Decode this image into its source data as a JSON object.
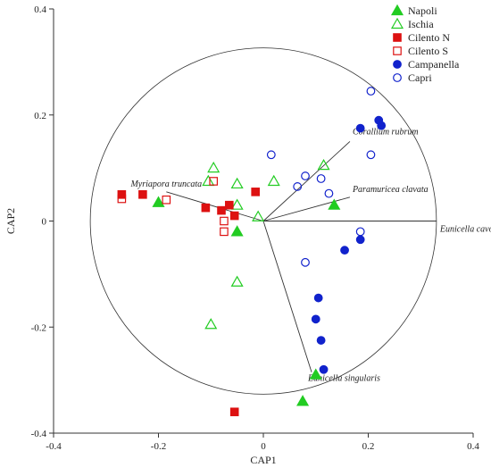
{
  "chart_data": {
    "type": "scatter",
    "xlabel": "CAP1",
    "ylabel": "CAP2",
    "xlim": [
      -0.4,
      0.4
    ],
    "ylim": [
      -0.4,
      0.4
    ],
    "x_ticks": [
      -0.4,
      -0.2,
      0,
      0.2,
      0.4
    ],
    "y_ticks": [
      -0.4,
      -0.2,
      0,
      0.2,
      0.4
    ],
    "x_tick_labels": [
      "-0.4",
      "-0.2",
      "0",
      "0.2",
      "0.4"
    ],
    "y_tick_labels": [
      "-0.4",
      "-0.2",
      "0",
      "0.2",
      "0.4"
    ],
    "grid": false,
    "circle_radius": 0.33,
    "legend_position": "top-right",
    "series": [
      {
        "name": "Napoli",
        "marker": "triangle",
        "filled": true,
        "color": "#22cc22",
        "points": [
          [
            -0.2,
            0.035
          ],
          [
            -0.05,
            -0.02
          ],
          [
            0.135,
            0.03
          ],
          [
            0.1,
            -0.29
          ],
          [
            0.075,
            -0.34
          ]
        ]
      },
      {
        "name": "Ischia",
        "marker": "triangle",
        "filled": false,
        "color": "#22cc22",
        "points": [
          [
            -0.095,
            0.1
          ],
          [
            -0.105,
            0.075
          ],
          [
            -0.05,
            0.07
          ],
          [
            -0.05,
            0.03
          ],
          [
            -0.01,
            0.008
          ],
          [
            0.02,
            0.075
          ],
          [
            0.115,
            0.105
          ],
          [
            -0.05,
            -0.115
          ],
          [
            -0.1,
            -0.195
          ]
        ]
      },
      {
        "name": "Cilento N",
        "marker": "square",
        "filled": true,
        "color": "#dd1111",
        "points": [
          [
            -0.27,
            0.05
          ],
          [
            -0.23,
            0.05
          ],
          [
            -0.11,
            0.025
          ],
          [
            -0.08,
            0.02
          ],
          [
            -0.065,
            0.03
          ],
          [
            -0.055,
            0.01
          ],
          [
            -0.015,
            0.055
          ],
          [
            -0.055,
            -0.36
          ]
        ]
      },
      {
        "name": "Cilento S",
        "marker": "square",
        "filled": false,
        "color": "#dd1111",
        "points": [
          [
            -0.27,
            0.042
          ],
          [
            -0.185,
            0.04
          ],
          [
            -0.095,
            0.075
          ],
          [
            -0.075,
            0.0
          ],
          [
            -0.075,
            -0.02
          ]
        ]
      },
      {
        "name": "Campanella",
        "marker": "circle",
        "filled": true,
        "color": "#1122cc",
        "points": [
          [
            0.185,
            0.175
          ],
          [
            0.22,
            0.19
          ],
          [
            0.225,
            0.18
          ],
          [
            0.185,
            -0.035
          ],
          [
            0.155,
            -0.055
          ],
          [
            0.105,
            -0.145
          ],
          [
            0.1,
            -0.185
          ],
          [
            0.11,
            -0.225
          ],
          [
            0.115,
            -0.28
          ]
        ]
      },
      {
        "name": "Capri",
        "marker": "circle",
        "filled": false,
        "color": "#1122cc",
        "points": [
          [
            0.205,
            0.245
          ],
          [
            0.015,
            0.125
          ],
          [
            0.065,
            0.065
          ],
          [
            0.08,
            0.085
          ],
          [
            0.11,
            0.08
          ],
          [
            0.125,
            0.052
          ],
          [
            0.205,
            0.125
          ],
          [
            0.185,
            -0.02
          ],
          [
            0.08,
            -0.078
          ]
        ]
      }
    ],
    "vectors": [
      {
        "label": "Corallium rubrum",
        "end": [
          0.165,
          0.15
        ]
      },
      {
        "label": "Paramuricea clavata",
        "end": [
          0.165,
          0.045
        ]
      },
      {
        "label": "Eunicella cavolinii",
        "end": [
          0.33,
          0.0
        ]
      },
      {
        "label": "Myriapora truncata",
        "end": [
          -0.185,
          0.055
        ]
      },
      {
        "label": "Eunicella singularis",
        "end": [
          0.092,
          -0.285
        ]
      }
    ]
  }
}
